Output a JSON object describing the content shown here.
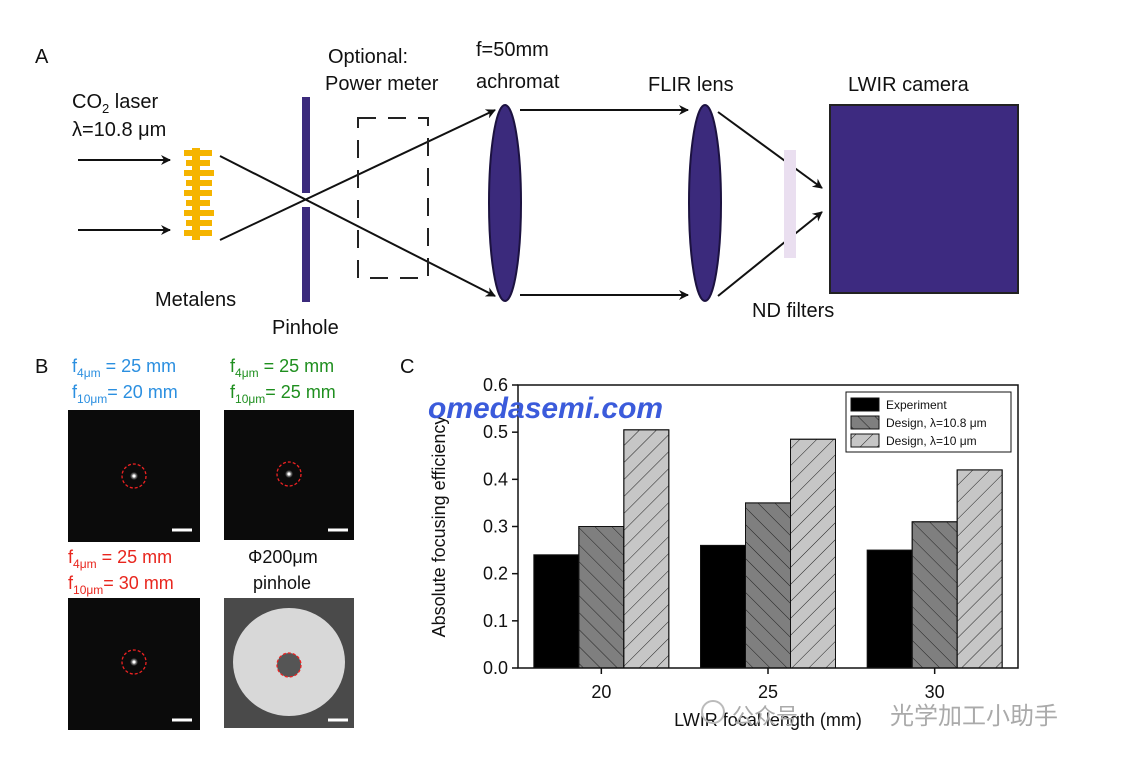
{
  "panel_a": {
    "label": "A",
    "laser": {
      "base": "CO",
      "sub": "2",
      "rest": " laser"
    },
    "wavelength": "λ=10.8 μm",
    "metalens": "Metalens",
    "pinhole": "Pinhole",
    "power_meter": [
      "Optional:",
      "Power meter"
    ],
    "achromat": [
      "f=50mm",
      "achromat"
    ],
    "flir_lens": "FLIR lens",
    "camera": "LWIR camera",
    "nd_filters": "ND filters"
  },
  "panel_b": {
    "label": "B",
    "images": [
      {
        "color": "#2b8fe0",
        "lines": [
          {
            "base": "f",
            "sub": "4μm",
            "rest": " = 25 mm"
          },
          {
            "base": "f",
            "sub": "10μm",
            "rest": "= 20 mm"
          }
        ]
      },
      {
        "color": "#1f8f1f",
        "lines": [
          {
            "base": "f",
            "sub": "4μm",
            "rest": " = 25 mm"
          },
          {
            "base": "f",
            "sub": "10μm",
            "rest": "= 25 mm"
          }
        ]
      },
      {
        "color": "#e8261e",
        "lines": [
          {
            "base": "f",
            "sub": "4μm",
            "rest": " = 25 mm"
          },
          {
            "base": "f",
            "sub": "10μm",
            "rest": "= 30 mm"
          }
        ]
      },
      {
        "color": "#111111",
        "lines": [
          "Φ200μm",
          "pinhole"
        ]
      }
    ]
  },
  "panel_c": {
    "label": "C"
  },
  "watermarks": [
    "omedasemi.com",
    "公众号",
    "光学加工小助手"
  ],
  "chart_data": {
    "type": "bar",
    "categories": [
      "20",
      "25",
      "30"
    ],
    "series": [
      {
        "name": "Experiment",
        "color": "#000000",
        "hatch": "none",
        "values": [
          0.24,
          0.26,
          0.25
        ]
      },
      {
        "name": "Design, λ=10.8 μm",
        "color": "#7f7f7f",
        "hatch": "backslash",
        "values": [
          0.3,
          0.35,
          0.31
        ]
      },
      {
        "name": "Design, λ=10 μm",
        "color": "#c6c6c6",
        "hatch": "slash",
        "values": [
          0.505,
          0.485,
          0.42
        ]
      }
    ],
    "xlabel": "LWIR focal length (mm)",
    "ylabel": "Absolute focusing efficiency",
    "ylim": [
      0,
      0.6
    ],
    "yticks": [
      {
        "value": 0,
        "label": "0.0"
      },
      0.1,
      0.2,
      0.3,
      0.4,
      0.5,
      0.6
    ],
    "legend": "upper right"
  }
}
